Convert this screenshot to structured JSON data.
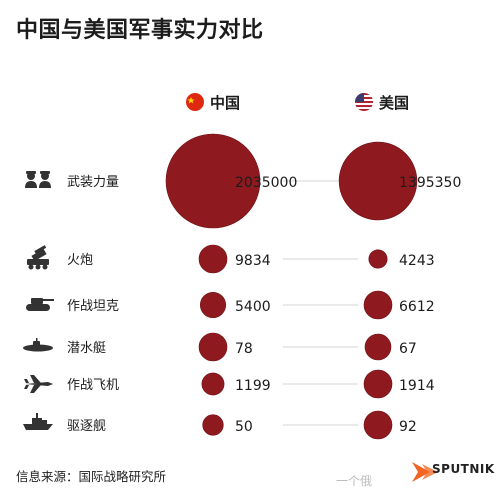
{
  "title": "中国与美国军事实力对比",
  "columns": [
    {
      "label": "中国",
      "flag": "china-flag-icon"
    },
    {
      "label": "美国",
      "flag": "usa-flag-icon"
    }
  ],
  "colors": {
    "bubble": "#8e1a1f",
    "bubble_edge": "#6e0f14",
    "text": "#1c1c1c",
    "connector": "#d6d6d6"
  },
  "chart_data": {
    "type": "bubble-comparison",
    "title": "中国与美国军事实力对比",
    "categories": [
      "武装力量",
      "火炮",
      "作战坦克",
      "潜水艇",
      "作战飞机",
      "驱逐舰"
    ],
    "category_icons": [
      "soldiers-icon",
      "artillery-icon",
      "tank-icon",
      "submarine-icon",
      "fighter-jet-icon",
      "destroyer-icon"
    ],
    "series": [
      {
        "name": "中国",
        "values": [
          2035000,
          9834,
          5400,
          78,
          1199,
          50
        ]
      },
      {
        "name": "美国",
        "values": [
          1395350,
          4243,
          6612,
          67,
          1914,
          92
        ]
      }
    ]
  },
  "footer": {
    "source": "信息来源：国际战略研究所",
    "watermark": "一个俄",
    "brand": "SPUTNIK"
  }
}
